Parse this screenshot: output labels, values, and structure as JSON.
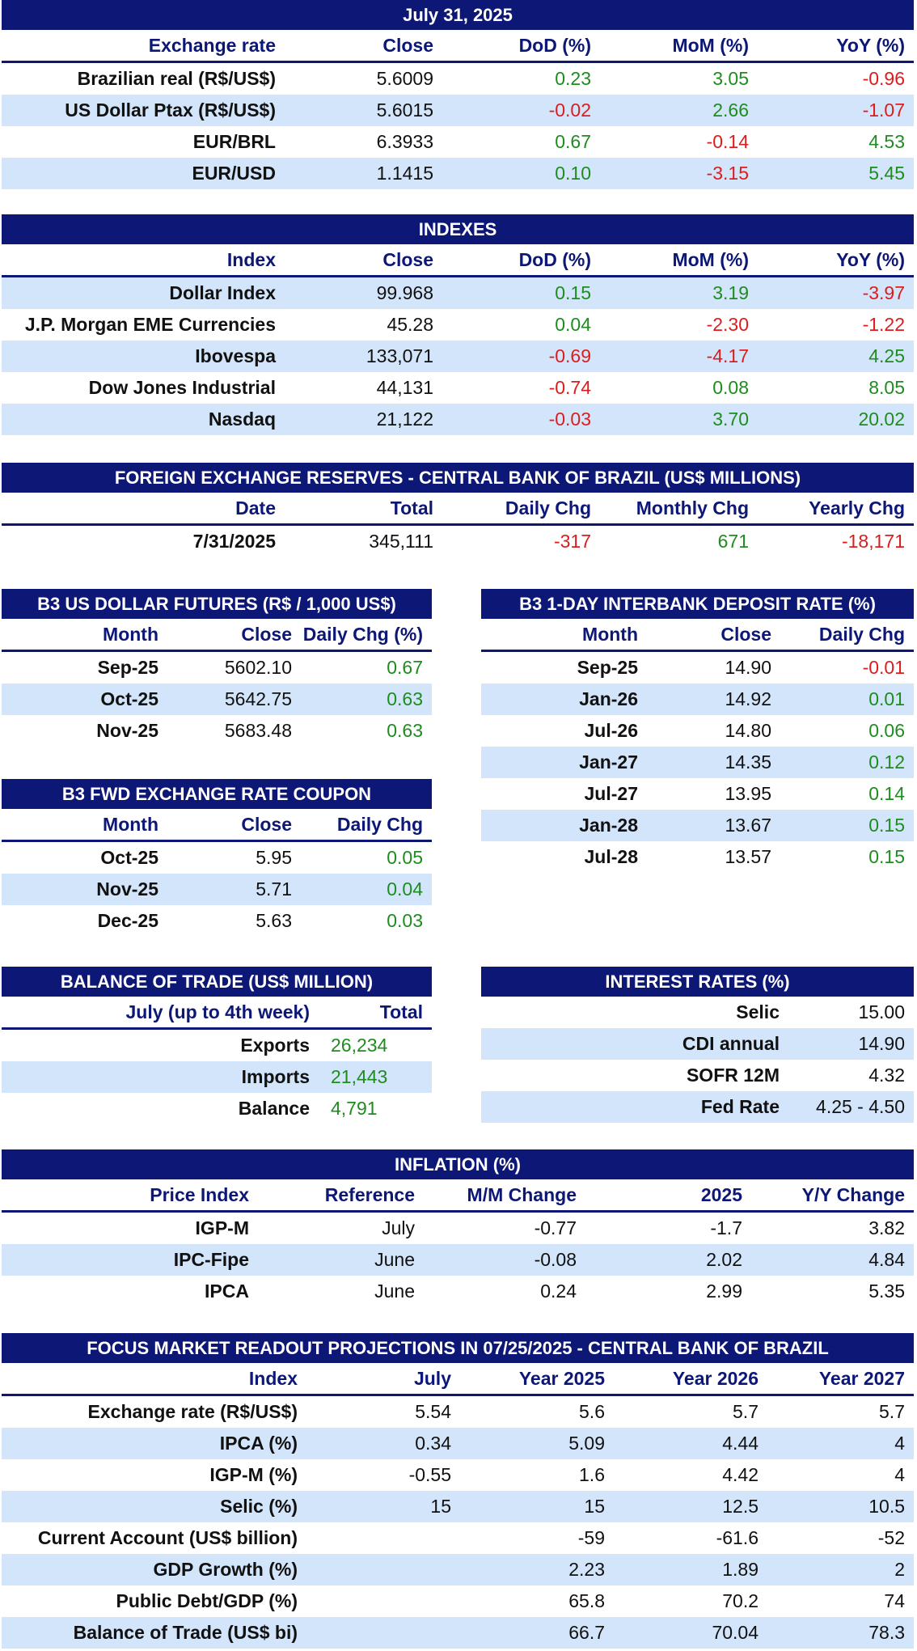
{
  "exchange": {
    "title": "July 31, 2025",
    "columns": [
      "Exchange rate",
      "Close",
      "DoD (%)",
      "MoM (%)",
      "YoY (%)"
    ],
    "rows": [
      [
        "Brazilian real (R$/US$)",
        "5.6009",
        "0.23",
        "3.05",
        "-0.96"
      ],
      [
        "US Dollar Ptax (R$/US$)",
        "5.6015",
        "-0.02",
        "2.66",
        "-1.07"
      ],
      [
        "EUR/BRL",
        "6.3933",
        "0.67",
        "-0.14",
        "4.53"
      ],
      [
        "EUR/USD",
        "1.1415",
        "0.10",
        "-3.15",
        "5.45"
      ]
    ]
  },
  "indexes": {
    "title": "INDEXES",
    "columns": [
      "Index",
      "Close",
      "DoD (%)",
      "MoM (%)",
      "YoY (%)"
    ],
    "rows": [
      [
        "Dollar Index",
        "99.968",
        "0.15",
        "3.19",
        "-3.97"
      ],
      [
        "J.P. Morgan EME Currencies",
        "45.28",
        "0.04",
        "-2.30",
        "-1.22"
      ],
      [
        "Ibovespa",
        "133,071",
        "-0.69",
        "-4.17",
        "4.25"
      ],
      [
        "Dow Jones Industrial",
        "44,131",
        "-0.74",
        "0.08",
        "8.05"
      ],
      [
        "Nasdaq",
        "21,122",
        "-0.03",
        "3.70",
        "20.02"
      ]
    ]
  },
  "reserves": {
    "title": "FOREIGN EXCHANGE RESERVES - CENTRAL BANK OF BRAZIL (US$ MILLIONS)",
    "columns": [
      "Date",
      "Total",
      "Daily Chg",
      "Monthly Chg",
      "Yearly Chg"
    ],
    "rows": [
      [
        "7/31/2025",
        "345,111",
        "-317",
        "671",
        "-18,171"
      ]
    ]
  },
  "futures": {
    "title": "B3 US DOLLAR FUTURES (R$ / 1,000 US$)",
    "columns": [
      "Month",
      "Close",
      "Daily Chg (%)"
    ],
    "rows": [
      [
        "Sep-25",
        "5602.10",
        "0.67"
      ],
      [
        "Oct-25",
        "5642.75",
        "0.63"
      ],
      [
        "Nov-25",
        "5683.48",
        "0.63"
      ]
    ]
  },
  "coupon": {
    "title": "B3 FWD EXCHANGE RATE COUPON",
    "columns": [
      "Month",
      "Close",
      "Daily Chg"
    ],
    "rows": [
      [
        "Oct-25",
        "5.95",
        "0.05"
      ],
      [
        "Nov-25",
        "5.71",
        "0.04"
      ],
      [
        "Dec-25",
        "5.63",
        "0.03"
      ]
    ]
  },
  "interbank": {
    "title": "B3 1-DAY INTERBANK DEPOSIT RATE (%)",
    "columns": [
      "Month",
      "Close",
      "Daily Chg"
    ],
    "rows": [
      [
        "Sep-25",
        "14.90",
        "-0.01"
      ],
      [
        "Jan-26",
        "14.92",
        "0.01"
      ],
      [
        "Jul-26",
        "14.80",
        "0.06"
      ],
      [
        "Jan-27",
        "14.35",
        "0.12"
      ],
      [
        "Jul-27",
        "13.95",
        "0.14"
      ],
      [
        "Jan-28",
        "13.67",
        "0.15"
      ],
      [
        "Jul-28",
        "13.57",
        "0.15"
      ]
    ]
  },
  "trade": {
    "title": "BALANCE OF TRADE (US$ MILLION)",
    "columns": [
      "July (up to 4th week)",
      "Total"
    ],
    "rows": [
      [
        "Exports",
        "26,234"
      ],
      [
        "Imports",
        "21,443"
      ],
      [
        "Balance",
        "4,791"
      ]
    ]
  },
  "rates": {
    "title": "INTEREST RATES (%)",
    "rows": [
      [
        "Selic",
        "15.00"
      ],
      [
        "CDI annual",
        "14.90"
      ],
      [
        "SOFR 12M",
        "4.32"
      ],
      [
        "Fed Rate",
        "4.25 - 4.50"
      ]
    ]
  },
  "inflation": {
    "title": "INFLATION (%)",
    "columns": [
      "Price Index",
      "Reference",
      "M/M Change",
      "2025",
      "Y/Y Change"
    ],
    "rows": [
      [
        "IGP-M",
        "July",
        "-0.77",
        "-1.7",
        "3.82"
      ],
      [
        "IPC-Fipe",
        "June",
        "-0.08",
        "2.02",
        "4.84"
      ],
      [
        "IPCA",
        "June",
        "0.24",
        "2.99",
        "5.35"
      ]
    ]
  },
  "focus": {
    "title": "FOCUS MARKET READOUT PROJECTIONS IN 07/25/2025 - CENTRAL BANK OF BRAZIL",
    "columns": [
      "Index",
      "July",
      "Year 2025",
      "Year 2026",
      "Year 2027"
    ],
    "rows": [
      [
        "Exchange rate (R$/US$)",
        "5.54",
        "5.6",
        "5.7",
        "5.7"
      ],
      [
        "IPCA (%)",
        "0.34",
        "5.09",
        "4.44",
        "4"
      ],
      [
        "IGP-M (%)",
        "-0.55",
        "1.6",
        "4.42",
        "4"
      ],
      [
        "Selic (%)",
        "15",
        "15",
        "12.5",
        "10.5"
      ],
      [
        "Current Account (US$ billion)",
        "",
        "-59",
        "-61.6",
        "-52"
      ],
      [
        "GDP Growth (%)",
        "",
        "2.23",
        "1.89",
        "2"
      ],
      [
        "Public Debt/GDP (%)",
        "",
        "65.8",
        "70.2",
        "74"
      ],
      [
        "Balance of Trade (US$ bi)",
        "",
        "66.7",
        "70.04",
        "78.3"
      ]
    ]
  },
  "colors": {
    "header": "#0c1776",
    "band": "#d3e5fa",
    "positive": "#1e8c1e",
    "negative": "#dc1d1d"
  }
}
